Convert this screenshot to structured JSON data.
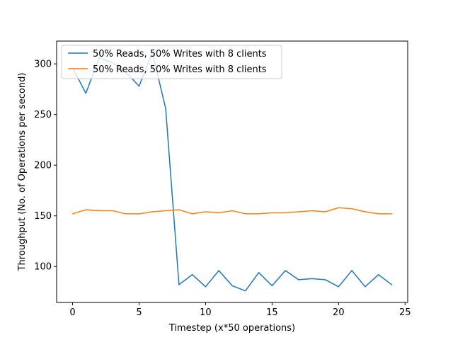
{
  "chart_data": {
    "type": "line",
    "title": "",
    "xlabel": "Timestep (x*50 operations)",
    "ylabel": "Throughput (No. of Operations per second)",
    "xlim": [
      -1.2,
      25.2
    ],
    "ylim": [
      64.5,
      322.5
    ],
    "x_ticks": [
      0,
      5,
      10,
      15,
      20,
      25
    ],
    "y_ticks": [
      100,
      150,
      200,
      250,
      300
    ],
    "grid": false,
    "legend_position": "top-left",
    "x": [
      0,
      1,
      2,
      3,
      4,
      5,
      6,
      7,
      8,
      9,
      10,
      11,
      12,
      13,
      14,
      15,
      16,
      17,
      18,
      19,
      20,
      21,
      22,
      23,
      24
    ],
    "series": [
      {
        "name": "50% Reads, 50% Writes with 8 clients",
        "color": "#1f77b4",
        "values": [
          296,
          271,
          306,
          301,
          292,
          278,
          311,
          256,
          82,
          92,
          80,
          96,
          81,
          76,
          94,
          81,
          96,
          87,
          88,
          87,
          80,
          96,
          80,
          92,
          82
        ]
      },
      {
        "name": "50% Reads, 50% Writes with 8 clients",
        "color": "#ff7f0e",
        "values": [
          152,
          156,
          155,
          155,
          152,
          152,
          154,
          155,
          156,
          152,
          154,
          153,
          155,
          152,
          152,
          153,
          153,
          154,
          155,
          154,
          158,
          157,
          154,
          152,
          152
        ]
      }
    ]
  }
}
